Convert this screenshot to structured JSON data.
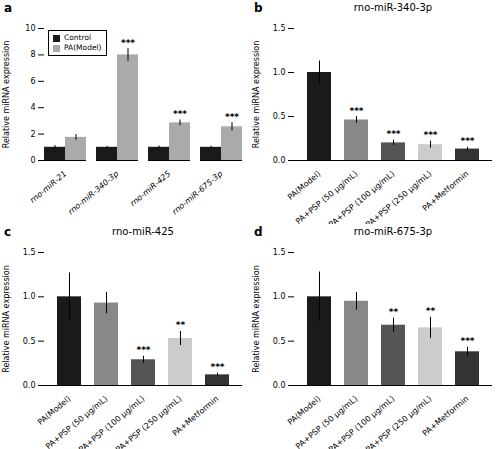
{
  "chart_data": [
    {
      "type": "bar",
      "annotations": [
        "a"
      ],
      "categories": [
        "rno-miR-21",
        "rno-miR-340-3p",
        "rno-miR-425",
        "rno-miR-675-3p"
      ],
      "series": [
        {
          "name": "Control",
          "color": "#1a1a1a",
          "values": [
            1.0,
            1.0,
            1.0,
            1.0
          ],
          "errors": [
            0.13,
            0.07,
            0.1,
            0.08
          ]
        },
        {
          "name": "PA(Model)",
          "color": "#aaaaaa",
          "values": [
            1.75,
            8.0,
            2.85,
            2.55
          ],
          "errors": [
            0.22,
            0.48,
            0.22,
            0.32
          ],
          "significance": [
            null,
            "***",
            "***",
            "***"
          ]
        }
      ],
      "ylabel": "Relative miRNA expression",
      "ylim": [
        0,
        10
      ],
      "yticks": [
        0,
        2,
        4,
        6,
        8,
        10
      ],
      "legend": "upper left",
      "grid": false
    },
    {
      "type": "bar",
      "annotations": [
        "b"
      ],
      "title": "rno-miR-340-3p",
      "categories": [
        "PA(Model)",
        "PA+PSP (50 μg/mL)",
        "PA+PSP (100 μg/mL)",
        "PA+PSP (250 μg/mL)",
        "PA+Metformin"
      ],
      "values": [
        1.0,
        0.46,
        0.2,
        0.18,
        0.13
      ],
      "errors": [
        0.13,
        0.04,
        0.03,
        0.04,
        0.02
      ],
      "significance": [
        null,
        "***",
        "***",
        "***",
        "***"
      ],
      "colors": [
        "#1a1a1a",
        "#888888",
        "#555555",
        "#cccccc",
        "#333333"
      ],
      "ylabel": "Relative miRNA expression",
      "ylim": [
        0,
        1.5
      ],
      "yticks": [
        {
          "value": 0,
          "label": "0.0"
        },
        {
          "value": 0.5,
          "label": "0.5"
        },
        {
          "value": 1,
          "label": "1.0"
        },
        {
          "value": 1.5,
          "label": "1.5"
        }
      ],
      "grid": false
    },
    {
      "type": "bar",
      "annotations": [
        "c"
      ],
      "title": "rno-miR-425",
      "categories": [
        "PA(Model)",
        "PA+PSP (50 μg/mL)",
        "PA+PSP (100 μg/mL)",
        "PA+PSP (250 μg/mL)",
        "PA+Metformin"
      ],
      "values": [
        1.0,
        0.93,
        0.29,
        0.53,
        0.12
      ],
      "errors": [
        0.27,
        0.12,
        0.04,
        0.08,
        0.02
      ],
      "significance": [
        null,
        null,
        "***",
        "**",
        "***"
      ],
      "colors": [
        "#1a1a1a",
        "#888888",
        "#555555",
        "#cccccc",
        "#333333"
      ],
      "ylabel": "Relative miRNA expression",
      "ylim": [
        0,
        1.5
      ],
      "yticks": [
        {
          "value": 0,
          "label": "0.0"
        },
        {
          "value": 0.5,
          "label": "0.5"
        },
        {
          "value": 1,
          "label": "1.0"
        },
        {
          "value": 1.5,
          "label": "1.5"
        }
      ],
      "grid": false
    },
    {
      "type": "bar",
      "annotations": [
        "d"
      ],
      "title": "rno-miR-675-3p",
      "categories": [
        "PA(Model)",
        "PA+PSP (50 μg/mL)",
        "PA+PSP (100 μg/mL)",
        "PA+PSP (250 μg/mL)",
        "PA+Metformin"
      ],
      "values": [
        1.0,
        0.95,
        0.68,
        0.65,
        0.38
      ],
      "errors": [
        0.28,
        0.1,
        0.08,
        0.12,
        0.05
      ],
      "significance": [
        null,
        null,
        "**",
        "**",
        "***"
      ],
      "colors": [
        "#1a1a1a",
        "#888888",
        "#555555",
        "#cccccc",
        "#333333"
      ],
      "ylabel": "Relative miRNA expression",
      "ylim": [
        0,
        1.5
      ],
      "yticks": [
        {
          "value": 0,
          "label": "0.0"
        },
        {
          "value": 0.5,
          "label": "0.5"
        },
        {
          "value": 1,
          "label": "1.0"
        },
        {
          "value": 1.5,
          "label": "1.5"
        }
      ],
      "grid": false
    }
  ]
}
